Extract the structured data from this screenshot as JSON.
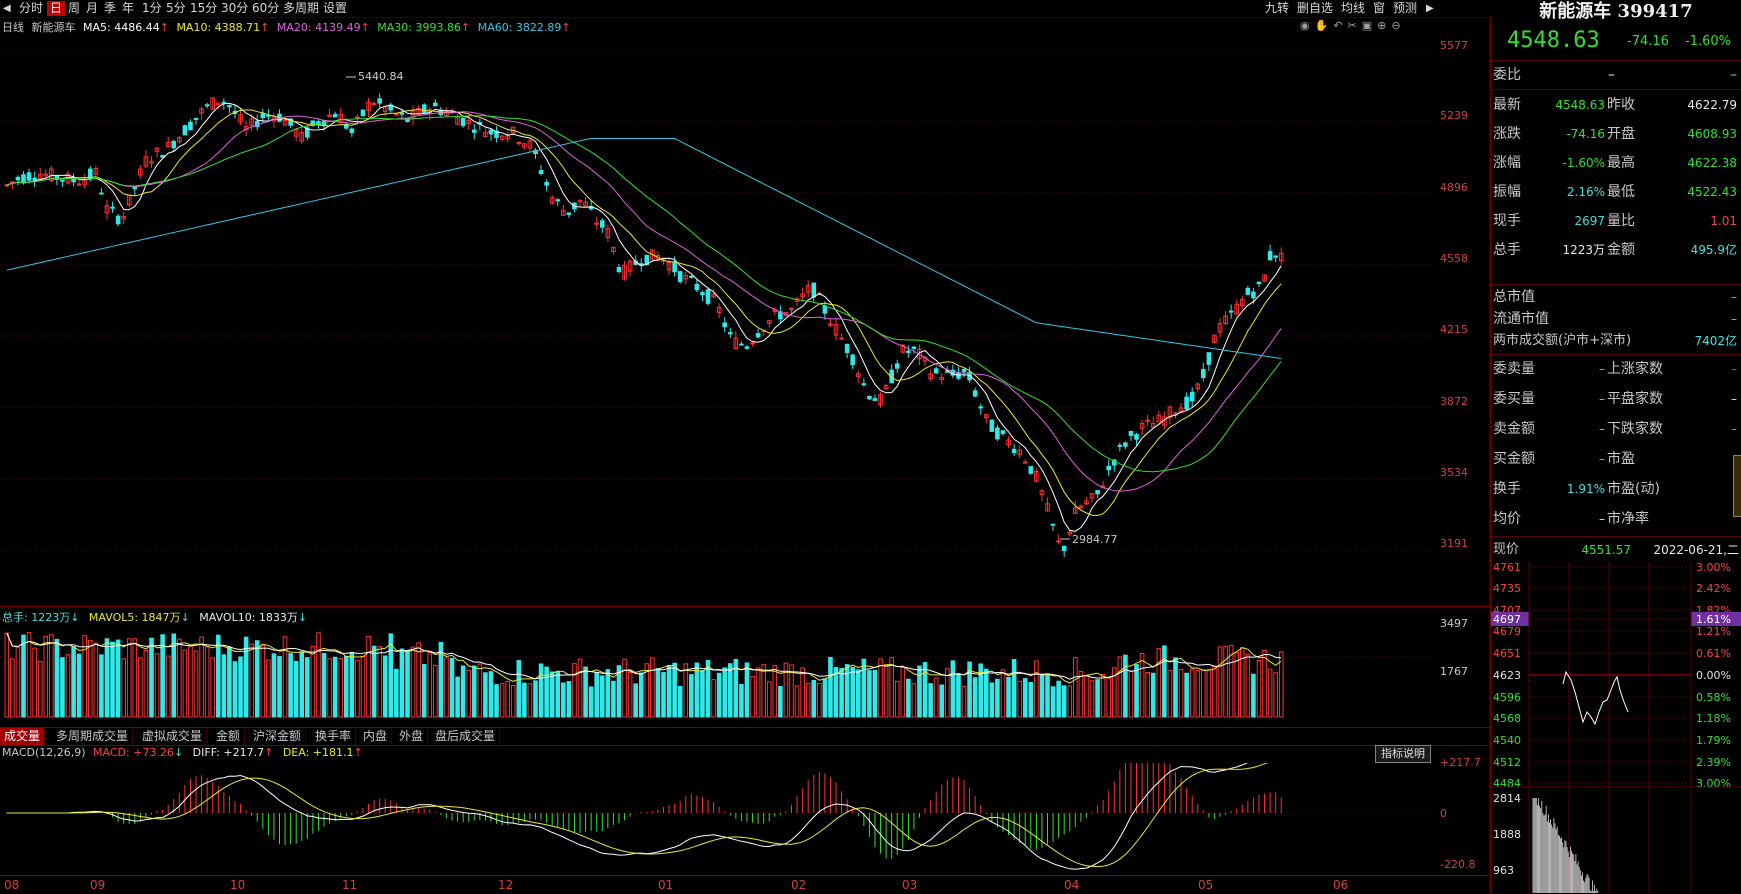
{
  "topbar": {
    "items": [
      "分时",
      "日",
      "周",
      "月",
      "季",
      "年",
      "1分",
      "5分",
      "15分",
      "30分",
      "60分",
      "多周期",
      "设置"
    ],
    "active_index": 1,
    "right_items": [
      "九转",
      "删自选",
      "均线",
      "窗",
      "预测"
    ]
  },
  "kline": {
    "period_label": "日线",
    "name": "新能源车",
    "ma5": "MA5: 4486.44",
    "ma10": "MA10: 4388.71",
    "ma20": "MA20: 4139.49",
    "ma30": "MA30: 3993.86",
    "ma60": "MA60: 3822.89",
    "arrow": "↑",
    "high_label": "5440.84",
    "low_label": "2984.77",
    "y_labels": [
      "5577",
      "5239",
      "4896",
      "4558",
      "4215",
      "3872",
      "3534",
      "3191"
    ],
    "colors": {
      "ma5": "#ffffff",
      "ma10": "#e8e830",
      "ma20": "#e060e0",
      "ma30": "#30e030",
      "ma60": "#30c8e8",
      "up": "#ff3030",
      "down": "#30e8e8"
    }
  },
  "volume": {
    "total": "总手: 1223万",
    "mavol5": "MAVOL5: 1847万",
    "mavol10": "MAVOL10: 1833万",
    "arrow": "↓",
    "y_labels": [
      "3497",
      "1767"
    ]
  },
  "tabs": [
    "成交量",
    "多周期成交量",
    "虚拟成交量",
    "金额",
    "沪深金额",
    "换手率",
    "内盘",
    "外盘",
    "盘后成交量"
  ],
  "macd": {
    "label": "MACD(12,26,9)",
    "macd": "MACD: +73.26",
    "macd_arrow": "↓",
    "diff": "DIFF: +217.7",
    "dea": "DEA: +181.1",
    "up_arrow": "↑",
    "help_button": "指标说明",
    "y_labels": [
      "+217.7",
      "0",
      "-220.8"
    ]
  },
  "x_axis": [
    "08",
    "09",
    "10",
    "11",
    "12",
    "01",
    "02",
    "03",
    "04",
    "05",
    "06"
  ],
  "quote": {
    "title": "新能源车 399417",
    "price": "4548.63",
    "change": "-74.16",
    "pct": "-1.60%",
    "weibi_label": "委比",
    "weibi_val": "–",
    "weibi_val2": "–",
    "rows": [
      {
        "l1": "最新",
        "v1": "4548.63",
        "c1": "green",
        "l2": "昨收",
        "v2": "4622.79",
        "c2": "white"
      },
      {
        "l1": "涨跌",
        "v1": "-74.16",
        "c1": "green",
        "l2": "开盘",
        "v2": "4608.93",
        "c2": "green"
      },
      {
        "l1": "涨幅",
        "v1": "-1.60%",
        "c1": "green",
        "l2": "最高",
        "v2": "4622.38",
        "c2": "green"
      },
      {
        "l1": "振幅",
        "v1": "2.16%",
        "c1": "cyan",
        "l2": "最低",
        "v2": "4522.43",
        "c2": "green"
      },
      {
        "l1": "现手",
        "v1": "2697",
        "c1": "cyan",
        "l2": "量比",
        "v2": "1.01",
        "c2": "red"
      },
      {
        "l1": "总手",
        "v1": "1223万",
        "c1": "white",
        "l2": "金额",
        "v2": "495.9亿",
        "c2": "cyan"
      }
    ],
    "market_rows": [
      {
        "l": "总市值",
        "v": "–"
      },
      {
        "l": "流通市值",
        "v": "–"
      },
      {
        "l": "两市成交额(沪市+深市)",
        "v": "7402亿"
      }
    ],
    "stat_rows": [
      {
        "l1": "委卖量",
        "v1": "–",
        "l2": "上涨家数",
        "v2": "–"
      },
      {
        "l1": "委买量",
        "v1": "–",
        "l2": "平盘家数",
        "v2": "–"
      },
      {
        "l1": "卖金额",
        "v1": "–",
        "l2": "下跌家数",
        "v2": "–"
      },
      {
        "l1": "买金额",
        "v1": "–",
        "l2": "市盈",
        "v2": ""
      },
      {
        "l1": "换手",
        "v1": "1.91%",
        "l2": "市盈(动)",
        "v2": ""
      },
      {
        "l1": "均价",
        "v1": "–",
        "l2": "市净率",
        "v2": ""
      }
    ],
    "current_label": "现价",
    "current_val": "4551.57",
    "date": "2022-06-21,二"
  },
  "mini_chart": {
    "left_labels": [
      "4761",
      "4735",
      "4707",
      "4697",
      "4679",
      "4651",
      "4623",
      "4596",
      "4568",
      "4540",
      "4512",
      "4484"
    ],
    "right_labels": [
      "3.00%",
      "2.42%",
      "1.82%",
      "1.61%",
      "1.21%",
      "0.61%",
      "0.00%",
      "0.58%",
      "1.18%",
      "1.79%",
      "2.39%",
      "3.00%"
    ],
    "vol_labels": [
      "2814",
      "1888",
      "963"
    ]
  }
}
